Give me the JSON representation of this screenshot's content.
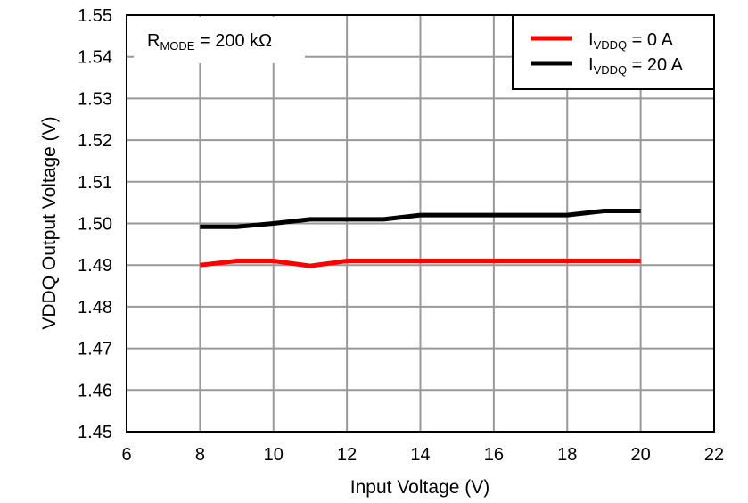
{
  "chart_data": {
    "type": "line",
    "title": "",
    "xlabel": "Input Voltage (V)",
    "ylabel": "VDDQ Output Voltage (V)",
    "xlim": [
      6,
      22
    ],
    "ylim": [
      1.45,
      1.55
    ],
    "xticks": [
      "6",
      "8",
      "10",
      "12",
      "14",
      "16",
      "18",
      "20",
      "22"
    ],
    "yticks": [
      "1.45",
      "1.46",
      "1.47",
      "1.48",
      "1.49",
      "1.50",
      "1.51",
      "1.52",
      "1.53",
      "1.54",
      "1.55"
    ],
    "grid": true,
    "legend_position": "top-right",
    "annotation": {
      "main": "R",
      "sub": "MODE",
      "rest": " = 200 kΩ"
    },
    "x": [
      8,
      9,
      10,
      11,
      12,
      13,
      14,
      15,
      16,
      17,
      18,
      19,
      20
    ],
    "series": [
      {
        "name": "I_VDDQ = 0 A",
        "label_main": "I",
        "label_sub": "VDDQ",
        "label_rest": " = 0 A",
        "color": "#ff0000",
        "values": [
          1.49,
          1.491,
          1.491,
          1.4898,
          1.491,
          1.491,
          1.491,
          1.491,
          1.491,
          1.491,
          1.491,
          1.491,
          1.491
        ]
      },
      {
        "name": "I_VDDQ = 20 A",
        "label_main": "I",
        "label_sub": "VDDQ",
        "label_rest": " = 20 A",
        "color": "#000000",
        "values": [
          1.4992,
          1.4992,
          1.5,
          1.501,
          1.501,
          1.501,
          1.502,
          1.502,
          1.502,
          1.502,
          1.502,
          1.503,
          1.503
        ]
      }
    ]
  }
}
